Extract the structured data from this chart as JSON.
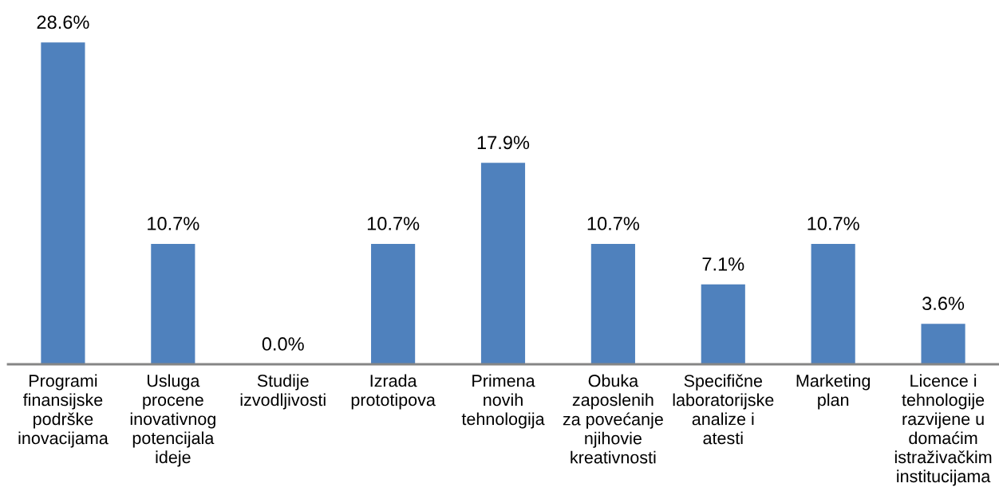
{
  "chart_data": {
    "type": "bar",
    "categories": [
      "Programi\nfinansijske\npodrške\ninovacijama",
      "Usluga\nprocene\ninovativnog\npotencijala\nideje",
      "Studije\nizvodljivosti",
      "Izrada\nprototipova",
      "Primena\nnovih\ntehnologija",
      "Obuka\nzaposlenih\nza povećanje\nnjihovie\nkreativnosti",
      "Specifične\nlaboratorijske\nanalize i\natesti",
      "Marketing\nplan",
      "Licence i\ntehnologije\nrazvijene u\ndomaćim\nistraživačkim\ninstitucijama"
    ],
    "values": [
      28.6,
      10.7,
      0.0,
      10.7,
      17.9,
      10.7,
      7.1,
      10.7,
      3.6
    ],
    "value_labels": [
      "28.6%",
      "10.7%",
      "0.0%",
      "10.7%",
      "17.9%",
      "10.7%",
      "7.1%",
      "10.7%",
      "3.6%"
    ],
    "color": "#4f81bd",
    "tick_labels": "x",
    "grid": false,
    "legend": false
  }
}
